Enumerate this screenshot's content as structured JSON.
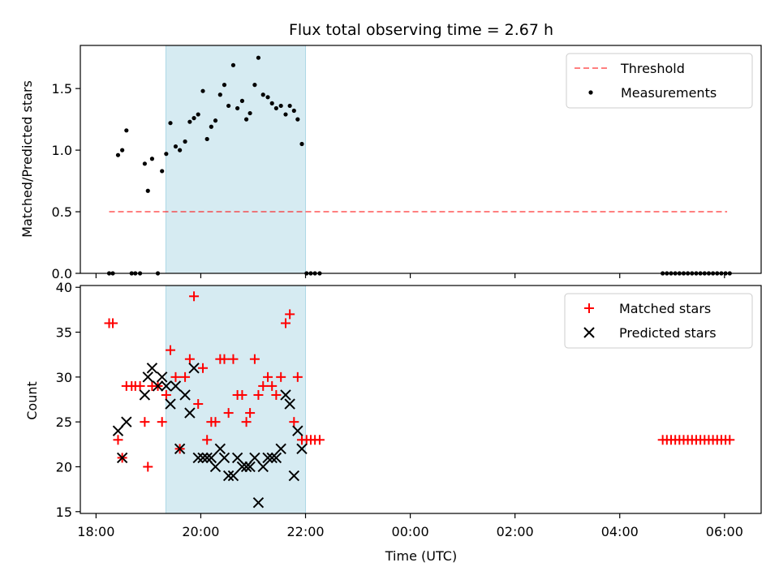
{
  "colors": {
    "shade": "#add8e6",
    "threshold": "#ff0000",
    "matched": "#ff0000",
    "predicted": "#000000",
    "measurements": "#000000"
  },
  "chart_data": [
    {
      "type": "scatter",
      "title": "Flux total observing time = 2.67 h",
      "xlabel": "",
      "ylabel": "Matched/Predicted stars",
      "x_unit": "hours since 18:00 UTC",
      "xlim": [
        -0.3,
        12.7
      ],
      "ylim": [
        0,
        1.85
      ],
      "yticks": [
        0.0,
        0.5,
        1.0,
        1.5
      ],
      "ytick_labels": [
        "0.0",
        "0.5",
        "1.0",
        "1.5"
      ],
      "shaded_interval": [
        "19:20",
        "22:00"
      ],
      "legend": {
        "position": "upper right",
        "entries": [
          "Threshold",
          "Measurements"
        ]
      },
      "series": [
        {
          "name": "Threshold",
          "style": "dashed-line",
          "points": [
            [
              0.25,
              0.5
            ],
            [
              12.05,
              0.5
            ]
          ]
        },
        {
          "name": "Measurements",
          "style": "dot",
          "points": [
            [
              0.25,
              0
            ],
            [
              0.32,
              0
            ],
            [
              0.42,
              0.96
            ],
            [
              0.5,
              1.0
            ],
            [
              0.58,
              1.16
            ],
            [
              0.68,
              0
            ],
            [
              0.75,
              0
            ],
            [
              0.84,
              0
            ],
            [
              0.93,
              0.89
            ],
            [
              0.99,
              0.67
            ],
            [
              1.07,
              0.93
            ],
            [
              1.18,
              0
            ],
            [
              1.26,
              0.83
            ],
            [
              1.34,
              0.97
            ],
            [
              1.42,
              1.22
            ],
            [
              1.52,
              1.03
            ],
            [
              1.6,
              1.0
            ],
            [
              1.7,
              1.07
            ],
            [
              1.79,
              1.23
            ],
            [
              1.87,
              1.26
            ],
            [
              1.95,
              1.29
            ],
            [
              2.04,
              1.48
            ],
            [
              2.12,
              1.09
            ],
            [
              2.2,
              1.19
            ],
            [
              2.28,
              1.24
            ],
            [
              2.37,
              1.45
            ],
            [
              2.45,
              1.53
            ],
            [
              2.53,
              1.36
            ],
            [
              2.62,
              1.69
            ],
            [
              2.7,
              1.34
            ],
            [
              2.79,
              1.4
            ],
            [
              2.87,
              1.25
            ],
            [
              2.94,
              1.3
            ],
            [
              3.03,
              1.53
            ],
            [
              3.1,
              1.75
            ],
            [
              3.19,
              1.45
            ],
            [
              3.28,
              1.43
            ],
            [
              3.36,
              1.38
            ],
            [
              3.44,
              1.34
            ],
            [
              3.53,
              1.36
            ],
            [
              3.62,
              1.29
            ],
            [
              3.7,
              1.36
            ],
            [
              3.78,
              1.32
            ],
            [
              3.85,
              1.25
            ],
            [
              3.93,
              1.05
            ],
            [
              4.02,
              0
            ],
            [
              4.1,
              0
            ],
            [
              4.18,
              0
            ],
            [
              4.27,
              0
            ],
            [
              10.82,
              0
            ],
            [
              10.9,
              0
            ],
            [
              10.98,
              0
            ],
            [
              11.06,
              0
            ],
            [
              11.14,
              0
            ],
            [
              11.22,
              0
            ],
            [
              11.3,
              0
            ],
            [
              11.38,
              0
            ],
            [
              11.46,
              0
            ],
            [
              11.54,
              0
            ],
            [
              11.62,
              0
            ],
            [
              11.7,
              0
            ],
            [
              11.78,
              0
            ],
            [
              11.86,
              0
            ],
            [
              11.94,
              0
            ],
            [
              12.02,
              0
            ],
            [
              12.1,
              0
            ]
          ]
        }
      ]
    },
    {
      "type": "scatter",
      "title": "",
      "xlabel": "Time (UTC)",
      "ylabel": "Count",
      "x_unit": "hours since 18:00 UTC",
      "xlim": [
        -0.3,
        12.7
      ],
      "ylim": [
        14.8,
        40.2
      ],
      "yticks": [
        15,
        20,
        25,
        30,
        35,
        40
      ],
      "ytick_labels": [
        "15",
        "20",
        "25",
        "30",
        "35",
        "40"
      ],
      "xtick_values": [
        0,
        2,
        4,
        6,
        8,
        10,
        12
      ],
      "xtick_labels": [
        "18:00",
        "20:00",
        "22:00",
        "00:00",
        "02:00",
        "04:00",
        "06:00"
      ],
      "legend": {
        "position": "upper right",
        "entries": [
          "Matched stars",
          "Predicted stars"
        ]
      },
      "series": [
        {
          "name": "Matched stars",
          "style": "plus",
          "points": [
            [
              0.25,
              36
            ],
            [
              0.32,
              36
            ],
            [
              0.42,
              23
            ],
            [
              0.5,
              21
            ],
            [
              0.58,
              29
            ],
            [
              0.68,
              29
            ],
            [
              0.75,
              29
            ],
            [
              0.84,
              29
            ],
            [
              0.93,
              25
            ],
            [
              0.99,
              20
            ],
            [
              1.07,
              29
            ],
            [
              1.18,
              29
            ],
            [
              1.26,
              25
            ],
            [
              1.34,
              28
            ],
            [
              1.42,
              33
            ],
            [
              1.52,
              30
            ],
            [
              1.6,
              22
            ],
            [
              1.7,
              30
            ],
            [
              1.79,
              32
            ],
            [
              1.87,
              39
            ],
            [
              1.95,
              27
            ],
            [
              2.04,
              31
            ],
            [
              2.12,
              23
            ],
            [
              2.2,
              25
            ],
            [
              2.28,
              25
            ],
            [
              2.37,
              32
            ],
            [
              2.45,
              32
            ],
            [
              2.53,
              26
            ],
            [
              2.62,
              32
            ],
            [
              2.7,
              28
            ],
            [
              2.79,
              28
            ],
            [
              2.87,
              25
            ],
            [
              2.94,
              26
            ],
            [
              3.03,
              32
            ],
            [
              3.1,
              28
            ],
            [
              3.19,
              29
            ],
            [
              3.28,
              30
            ],
            [
              3.36,
              29
            ],
            [
              3.44,
              28
            ],
            [
              3.53,
              30
            ],
            [
              3.62,
              36
            ],
            [
              3.7,
              37
            ],
            [
              3.78,
              25
            ],
            [
              3.85,
              30
            ],
            [
              3.93,
              23
            ],
            [
              4.02,
              23
            ],
            [
              4.1,
              23
            ],
            [
              4.18,
              23
            ],
            [
              4.27,
              23
            ],
            [
              10.82,
              23
            ],
            [
              10.9,
              23
            ],
            [
              10.98,
              23
            ],
            [
              11.06,
              23
            ],
            [
              11.14,
              23
            ],
            [
              11.22,
              23
            ],
            [
              11.3,
              23
            ],
            [
              11.38,
              23
            ],
            [
              11.46,
              23
            ],
            [
              11.54,
              23
            ],
            [
              11.62,
              23
            ],
            [
              11.7,
              23
            ],
            [
              11.78,
              23
            ],
            [
              11.86,
              23
            ],
            [
              11.94,
              23
            ],
            [
              12.02,
              23
            ],
            [
              12.1,
              23
            ]
          ]
        },
        {
          "name": "Predicted stars",
          "style": "x",
          "points": [
            [
              0.42,
              24
            ],
            [
              0.5,
              21
            ],
            [
              0.58,
              25
            ],
            [
              0.93,
              28
            ],
            [
              0.99,
              30
            ],
            [
              1.07,
              31
            ],
            [
              1.18,
              29
            ],
            [
              1.26,
              30
            ],
            [
              1.34,
              29
            ],
            [
              1.42,
              27
            ],
            [
              1.52,
              29
            ],
            [
              1.6,
              22
            ],
            [
              1.7,
              28
            ],
            [
              1.79,
              26
            ],
            [
              1.87,
              31
            ],
            [
              1.95,
              21
            ],
            [
              2.04,
              21
            ],
            [
              2.12,
              21
            ],
            [
              2.2,
              21
            ],
            [
              2.28,
              20
            ],
            [
              2.37,
              22
            ],
            [
              2.45,
              21
            ],
            [
              2.53,
              19
            ],
            [
              2.62,
              19
            ],
            [
              2.7,
              21
            ],
            [
              2.79,
              20
            ],
            [
              2.87,
              20
            ],
            [
              2.94,
              20
            ],
            [
              3.03,
              21
            ],
            [
              3.1,
              16
            ],
            [
              3.19,
              20
            ],
            [
              3.28,
              21
            ],
            [
              3.36,
              21
            ],
            [
              3.44,
              21
            ],
            [
              3.53,
              22
            ],
            [
              3.62,
              28
            ],
            [
              3.7,
              27
            ],
            [
              3.78,
              19
            ],
            [
              3.85,
              24
            ],
            [
              3.93,
              22
            ]
          ]
        }
      ]
    }
  ]
}
